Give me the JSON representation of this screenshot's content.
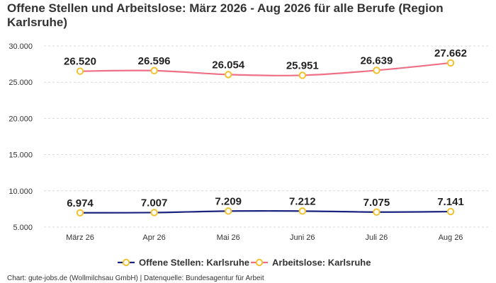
{
  "title": "Offene Stellen und Arbeitslose: März 2026 - Aug 2026 für alle Berufe (Region Karlsruhe)",
  "credits": "Chart: gute-jobs.de (Wollmilchsau GmbH) | Datenquelle: Bundesagentur für Arbeit",
  "chart_data": {
    "type": "line",
    "categories": [
      "März 26",
      "Apr 26",
      "Mai 26",
      "Juni 26",
      "Juli 26",
      "Aug 26"
    ],
    "y_ticks": [
      5000,
      10000,
      15000,
      20000,
      25000,
      30000
    ],
    "y_tick_labels": [
      "5.000",
      "10.000",
      "15.000",
      "20.000",
      "25.000",
      "30.000"
    ],
    "ylim": [
      5000,
      30000
    ],
    "grid": true,
    "legend_position": "bottom-center",
    "series": [
      {
        "name": "Offene Stellen: Karlsruhe",
        "values": [
          6974,
          7007,
          7209,
          7212,
          7075,
          7141
        ],
        "labels": [
          "6.974",
          "7.007",
          "7.209",
          "7.212",
          "7.075",
          "7.141"
        ],
        "color": "#1a237e"
      },
      {
        "name": "Arbeitslose: Karlsruhe",
        "values": [
          26520,
          26596,
          26054,
          25951,
          26639,
          27662
        ],
        "labels": [
          "26.520",
          "26.596",
          "26.054",
          "25.951",
          "26.639",
          "27.662"
        ],
        "color": "#ef6f86"
      }
    ],
    "marker_fill": "#ffffff",
    "marker_stroke": "#f2c12e",
    "grid_color": "#d9d9d9"
  }
}
